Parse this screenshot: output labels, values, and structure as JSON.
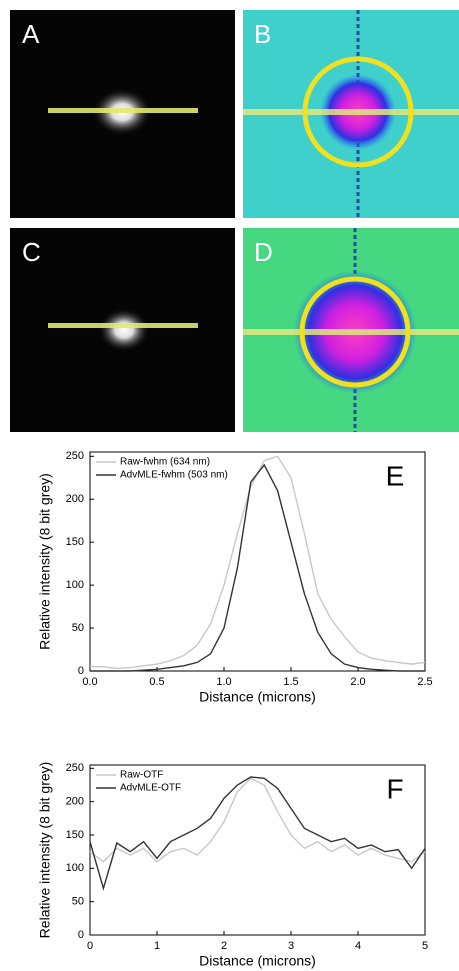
{
  "image_panels": [
    {
      "label": "A"
    },
    {
      "label": "B"
    },
    {
      "label": "C"
    },
    {
      "label": "D"
    }
  ],
  "chart_data": [
    {
      "type": "line",
      "annotation": "E",
      "xlabel": "Distance (microns)",
      "ylabel": "Relative intensity (8 bit grey)",
      "x": [
        0,
        0.1,
        0.2,
        0.3,
        0.4,
        0.5,
        0.6,
        0.7,
        0.8,
        0.9,
        1.0,
        1.1,
        1.2,
        1.3,
        1.4,
        1.5,
        1.6,
        1.7,
        1.8,
        1.9,
        2.0,
        2.1,
        2.2,
        2.3,
        2.4,
        2.5
      ],
      "series": [
        {
          "name": "Raw-fwhm (634 nm)",
          "color": "#c8c8c8",
          "values": [
            5,
            5,
            3,
            4,
            6,
            8,
            12,
            18,
            30,
            55,
            100,
            160,
            215,
            245,
            250,
            225,
            160,
            90,
            60,
            40,
            22,
            15,
            12,
            10,
            8,
            10
          ]
        },
        {
          "name": "AdvMLE-fwhm (503 nm)",
          "color": "#333333",
          "values": [
            0,
            0,
            0,
            0,
            1,
            2,
            4,
            6,
            10,
            20,
            50,
            120,
            220,
            240,
            210,
            150,
            90,
            45,
            20,
            8,
            4,
            2,
            1,
            0,
            0,
            0
          ]
        }
      ],
      "xlim": [
        0,
        2.5
      ],
      "ylim": [
        0,
        255
      ],
      "xticks": [
        {
          "value": 0,
          "label": "0.0"
        },
        0.5,
        {
          "value": 1,
          "label": "1.0"
        },
        1.5,
        {
          "value": 2,
          "label": "2.0"
        },
        2.5
      ],
      "yticks": [
        0,
        50,
        100,
        150,
        200,
        250
      ],
      "legend": "upper left"
    },
    {
      "type": "line",
      "annotation": "F",
      "xlabel": "Distance (microns)",
      "ylabel": "Relative intensity (8 bit grey)",
      "x": [
        0,
        0.2,
        0.4,
        0.6,
        0.8,
        1.0,
        1.2,
        1.4,
        1.6,
        1.8,
        2.0,
        2.2,
        2.4,
        2.6,
        2.8,
        3.0,
        3.2,
        3.4,
        3.6,
        3.8,
        4.0,
        4.2,
        4.4,
        4.6,
        4.8,
        5.0
      ],
      "series": [
        {
          "name": "Raw-OTF",
          "color": "#c8c8c8",
          "values": [
            125,
            110,
            130,
            120,
            130,
            110,
            125,
            130,
            120,
            140,
            170,
            215,
            235,
            225,
            185,
            150,
            130,
            140,
            125,
            135,
            120,
            130,
            120,
            115,
            110,
            125
          ]
        },
        {
          "name": "AdvMLE-OTF",
          "color": "#333333",
          "values": [
            140,
            70,
            138,
            125,
            140,
            115,
            140,
            150,
            160,
            175,
            205,
            225,
            237,
            235,
            220,
            190,
            160,
            150,
            140,
            145,
            130,
            135,
            125,
            128,
            100,
            130
          ]
        }
      ],
      "xlim": [
        0,
        5
      ],
      "ylim": [
        0,
        255
      ],
      "xticks": [
        0,
        1,
        2,
        3,
        4,
        5
      ],
      "yticks": [
        0,
        50,
        100,
        150,
        200,
        250
      ],
      "legend": "upper left"
    }
  ]
}
